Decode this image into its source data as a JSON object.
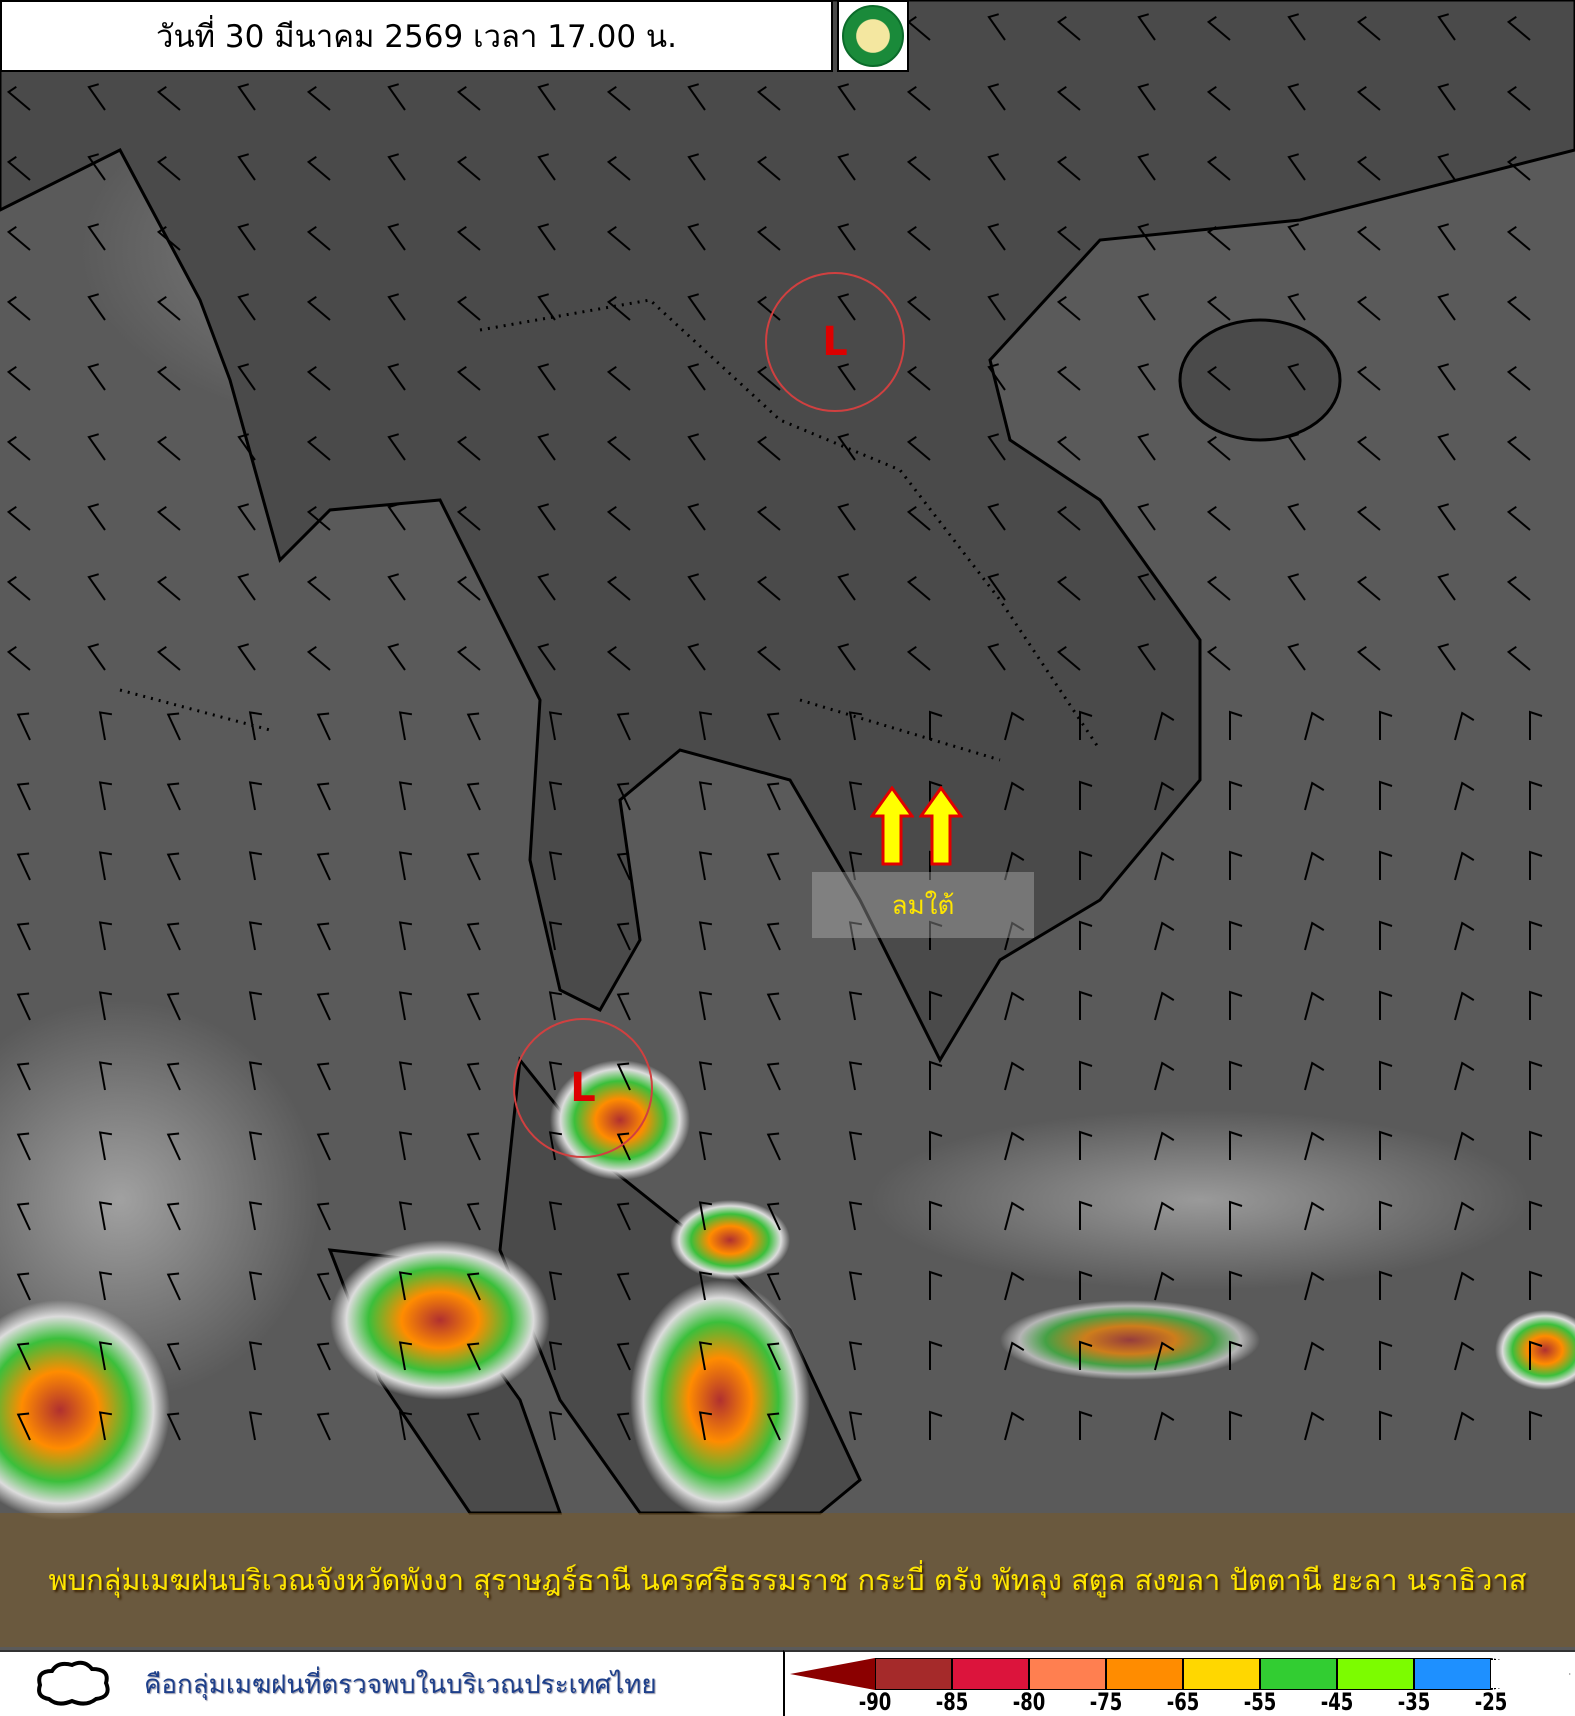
{
  "header": {
    "title": "วันที่ 30 มีนาคม 2569 เวลา 17.00 น.",
    "logo": "Thai Meteorological Department logo"
  },
  "map": {
    "low_pressure_label": "L",
    "wind_label": "ลมใต้",
    "arrow_icon": "up-arrow",
    "arrow_color": "#ffff00"
  },
  "message": "พบกลุ่มเมฆฝนบริเวณจังหวัดพังงา สุราษฎร์ธานี นครศรีธรรมราช กระบี่ ตรัง พัทลุง สตูล สงขลา ปัตตานี ยะลา นราธิวาส",
  "legend": {
    "cloud_icon": "cloud-outline",
    "cloud_text": "คือกลุ่มเมฆฝนที่ตรวจพบในบริเวณประเทศไทย",
    "colors": [
      "#a52a2a",
      "#dc143c",
      "#ff7f50",
      "#ff8c00",
      "#ffd700",
      "#32cd32",
      "#7cfc00",
      "#1e90ff"
    ],
    "ticks": [
      "-90",
      "-85",
      "-80",
      "-75",
      "-65",
      "-55",
      "-45",
      "-35",
      "-25"
    ]
  }
}
